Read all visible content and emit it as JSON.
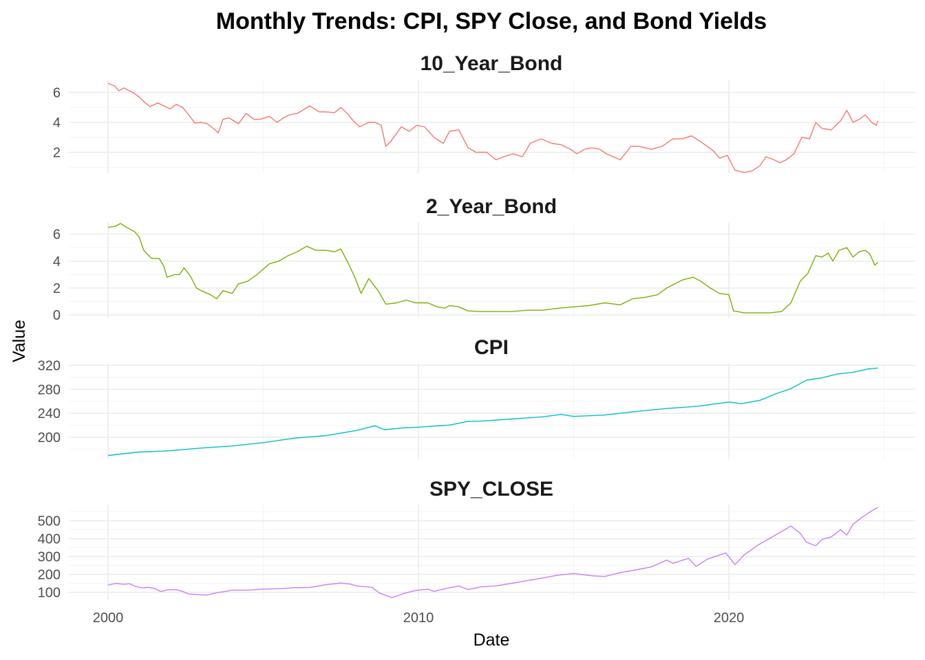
{
  "chart_data": {
    "type": "line",
    "title": "Monthly Trends: CPI, SPY Close, and Bond Yields",
    "xlabel": "Date",
    "ylabel": "Value",
    "x_range": [
      2000.0,
      2024.75
    ],
    "x_ticks": [
      "2000",
      "2010",
      "2020"
    ],
    "legend": "none",
    "grid": true,
    "panels": [
      {
        "name": "10_Year_Bond",
        "color": "#F8766D",
        "ylim": [
          0.6,
          6.8
        ],
        "y_ticks": [
          2,
          4,
          6
        ],
        "series": [
          [
            2000.0,
            6.6
          ],
          [
            2000.2,
            6.45
          ],
          [
            2000.35,
            6.1
          ],
          [
            2000.5,
            6.3
          ],
          [
            2000.65,
            6.15
          ],
          [
            2000.8,
            6.0
          ],
          [
            2001.0,
            5.7
          ],
          [
            2001.2,
            5.3
          ],
          [
            2001.35,
            5.05
          ],
          [
            2001.6,
            5.3
          ],
          [
            2001.85,
            5.05
          ],
          [
            2002.0,
            4.9
          ],
          [
            2002.2,
            5.2
          ],
          [
            2002.4,
            5.0
          ],
          [
            2002.6,
            4.5
          ],
          [
            2002.8,
            3.95
          ],
          [
            2003.0,
            4.0
          ],
          [
            2003.2,
            3.9
          ],
          [
            2003.45,
            3.5
          ],
          [
            2003.55,
            3.3
          ],
          [
            2003.7,
            4.2
          ],
          [
            2003.9,
            4.3
          ],
          [
            2004.2,
            3.9
          ],
          [
            2004.45,
            4.6
          ],
          [
            2004.7,
            4.2
          ],
          [
            2004.9,
            4.2
          ],
          [
            2005.2,
            4.4
          ],
          [
            2005.45,
            4.0
          ],
          [
            2005.65,
            4.3
          ],
          [
            2005.85,
            4.5
          ],
          [
            2006.1,
            4.6
          ],
          [
            2006.5,
            5.1
          ],
          [
            2006.8,
            4.7
          ],
          [
            2007.0,
            4.7
          ],
          [
            2007.3,
            4.65
          ],
          [
            2007.5,
            5.0
          ],
          [
            2007.75,
            4.5
          ],
          [
            2007.9,
            4.1
          ],
          [
            2008.1,
            3.7
          ],
          [
            2008.4,
            4.0
          ],
          [
            2008.6,
            4.0
          ],
          [
            2008.8,
            3.8
          ],
          [
            2008.95,
            2.4
          ],
          [
            2009.1,
            2.7
          ],
          [
            2009.45,
            3.7
          ],
          [
            2009.7,
            3.4
          ],
          [
            2009.95,
            3.8
          ],
          [
            2010.2,
            3.7
          ],
          [
            2010.5,
            3.0
          ],
          [
            2010.8,
            2.6
          ],
          [
            2011.0,
            3.4
          ],
          [
            2011.3,
            3.5
          ],
          [
            2011.6,
            2.3
          ],
          [
            2011.85,
            2.0
          ],
          [
            2012.2,
            2.0
          ],
          [
            2012.5,
            1.5
          ],
          [
            2012.75,
            1.7
          ],
          [
            2013.05,
            1.9
          ],
          [
            2013.35,
            1.7
          ],
          [
            2013.6,
            2.6
          ],
          [
            2013.95,
            2.9
          ],
          [
            2014.3,
            2.6
          ],
          [
            2014.6,
            2.5
          ],
          [
            2014.9,
            2.2
          ],
          [
            2015.1,
            1.9
          ],
          [
            2015.35,
            2.2
          ],
          [
            2015.6,
            2.3
          ],
          [
            2015.85,
            2.2
          ],
          [
            2016.05,
            1.9
          ],
          [
            2016.5,
            1.5
          ],
          [
            2016.85,
            2.4
          ],
          [
            2017.1,
            2.4
          ],
          [
            2017.5,
            2.2
          ],
          [
            2017.85,
            2.4
          ],
          [
            2018.2,
            2.9
          ],
          [
            2018.5,
            2.9
          ],
          [
            2018.8,
            3.1
          ],
          [
            2019.1,
            2.7
          ],
          [
            2019.5,
            2.1
          ],
          [
            2019.7,
            1.6
          ],
          [
            2019.95,
            1.8
          ],
          [
            2020.2,
            0.8
          ],
          [
            2020.5,
            0.65
          ],
          [
            2020.75,
            0.75
          ],
          [
            2021.0,
            1.1
          ],
          [
            2021.2,
            1.7
          ],
          [
            2021.45,
            1.5
          ],
          [
            2021.65,
            1.3
          ],
          [
            2021.85,
            1.5
          ],
          [
            2022.1,
            1.9
          ],
          [
            2022.35,
            3.0
          ],
          [
            2022.6,
            2.9
          ],
          [
            2022.8,
            4.0
          ],
          [
            2023.0,
            3.6
          ],
          [
            2023.3,
            3.5
          ],
          [
            2023.6,
            4.1
          ],
          [
            2023.8,
            4.8
          ],
          [
            2024.0,
            4.0
          ],
          [
            2024.2,
            4.2
          ],
          [
            2024.4,
            4.5
          ],
          [
            2024.6,
            4.0
          ],
          [
            2024.75,
            3.8
          ],
          [
            2024.8,
            4.1
          ]
        ]
      },
      {
        "name": "2_Year_Bond",
        "color": "#7CAE00",
        "ylim": [
          -0.2,
          6.9
        ],
        "y_ticks": [
          0,
          2,
          4,
          6
        ],
        "series": [
          [
            2000.0,
            6.5
          ],
          [
            2000.25,
            6.6
          ],
          [
            2000.4,
            6.8
          ],
          [
            2000.6,
            6.5
          ],
          [
            2000.85,
            6.2
          ],
          [
            2001.0,
            5.8
          ],
          [
            2001.15,
            4.8
          ],
          [
            2001.4,
            4.2
          ],
          [
            2001.65,
            4.2
          ],
          [
            2001.8,
            3.6
          ],
          [
            2001.9,
            2.8
          ],
          [
            2002.15,
            3.0
          ],
          [
            2002.3,
            3.0
          ],
          [
            2002.45,
            3.5
          ],
          [
            2002.65,
            2.9
          ],
          [
            2002.85,
            2.0
          ],
          [
            2003.0,
            1.8
          ],
          [
            2003.3,
            1.5
          ],
          [
            2003.5,
            1.2
          ],
          [
            2003.7,
            1.8
          ],
          [
            2004.0,
            1.6
          ],
          [
            2004.2,
            2.3
          ],
          [
            2004.5,
            2.5
          ],
          [
            2004.8,
            3.0
          ],
          [
            2005.2,
            3.8
          ],
          [
            2005.5,
            4.0
          ],
          [
            2005.8,
            4.4
          ],
          [
            2006.1,
            4.7
          ],
          [
            2006.4,
            5.1
          ],
          [
            2006.7,
            4.8
          ],
          [
            2007.0,
            4.8
          ],
          [
            2007.3,
            4.7
          ],
          [
            2007.5,
            4.9
          ],
          [
            2007.75,
            3.8
          ],
          [
            2007.95,
            2.8
          ],
          [
            2008.15,
            1.6
          ],
          [
            2008.4,
            2.7
          ],
          [
            2008.7,
            1.8
          ],
          [
            2008.95,
            0.8
          ],
          [
            2009.3,
            0.9
          ],
          [
            2009.6,
            1.1
          ],
          [
            2009.9,
            0.9
          ],
          [
            2010.3,
            0.9
          ],
          [
            2010.6,
            0.6
          ],
          [
            2010.85,
            0.5
          ],
          [
            2011.0,
            0.7
          ],
          [
            2011.3,
            0.6
          ],
          [
            2011.6,
            0.3
          ],
          [
            2012.0,
            0.25
          ],
          [
            2012.5,
            0.25
          ],
          [
            2013.0,
            0.25
          ],
          [
            2013.5,
            0.35
          ],
          [
            2014.0,
            0.35
          ],
          [
            2014.5,
            0.5
          ],
          [
            2015.0,
            0.6
          ],
          [
            2015.5,
            0.7
          ],
          [
            2016.0,
            0.9
          ],
          [
            2016.5,
            0.75
          ],
          [
            2016.9,
            1.2
          ],
          [
            2017.3,
            1.3
          ],
          [
            2017.7,
            1.5
          ],
          [
            2018.0,
            2.0
          ],
          [
            2018.5,
            2.6
          ],
          [
            2018.85,
            2.8
          ],
          [
            2019.1,
            2.5
          ],
          [
            2019.4,
            2.0
          ],
          [
            2019.7,
            1.6
          ],
          [
            2020.0,
            1.5
          ],
          [
            2020.15,
            0.3
          ],
          [
            2020.5,
            0.15
          ],
          [
            2020.9,
            0.15
          ],
          [
            2021.3,
            0.15
          ],
          [
            2021.7,
            0.25
          ],
          [
            2022.0,
            0.9
          ],
          [
            2022.3,
            2.5
          ],
          [
            2022.55,
            3.1
          ],
          [
            2022.8,
            4.4
          ],
          [
            2023.0,
            4.3
          ],
          [
            2023.2,
            4.6
          ],
          [
            2023.35,
            4.0
          ],
          [
            2023.55,
            4.8
          ],
          [
            2023.8,
            5.0
          ],
          [
            2024.0,
            4.3
          ],
          [
            2024.2,
            4.7
          ],
          [
            2024.4,
            4.8
          ],
          [
            2024.55,
            4.5
          ],
          [
            2024.7,
            3.7
          ],
          [
            2024.8,
            3.9
          ]
        ]
      },
      {
        "name": "CPI",
        "color": "#00BFC4",
        "ylim": [
          163,
          324
        ],
        "y_ticks": [
          200,
          240,
          280,
          320
        ],
        "series": [
          [
            2000.0,
            169.3
          ],
          [
            2001.0,
            175.1
          ],
          [
            2002.0,
            177.1
          ],
          [
            2003.0,
            181.7
          ],
          [
            2004.0,
            185.2
          ],
          [
            2005.0,
            190.7
          ],
          [
            2006.0,
            198.3
          ],
          [
            2007.0,
            202.4
          ],
          [
            2008.0,
            211.1
          ],
          [
            2008.6,
            219.0
          ],
          [
            2008.9,
            212.4
          ],
          [
            2009.5,
            215.4
          ],
          [
            2010.0,
            216.7
          ],
          [
            2011.0,
            220.2
          ],
          [
            2011.6,
            226.5
          ],
          [
            2012.0,
            226.7
          ],
          [
            2013.0,
            230.3
          ],
          [
            2014.0,
            233.9
          ],
          [
            2014.6,
            238.0
          ],
          [
            2015.0,
            234.7
          ],
          [
            2016.0,
            236.9
          ],
          [
            2017.0,
            242.8
          ],
          [
            2018.0,
            247.9
          ],
          [
            2019.0,
            251.7
          ],
          [
            2020.0,
            258.7
          ],
          [
            2020.4,
            255.9
          ],
          [
            2021.0,
            261.6
          ],
          [
            2021.5,
            272.2
          ],
          [
            2022.0,
            281.1
          ],
          [
            2022.5,
            295.3
          ],
          [
            2023.0,
            299.2
          ],
          [
            2023.5,
            305.7
          ],
          [
            2024.0,
            308.4
          ],
          [
            2024.5,
            314.1
          ],
          [
            2024.8,
            315.6
          ]
        ]
      },
      {
        "name": "SPY_CLOSE",
        "color": "#C77CFF",
        "ylim": [
          56,
          590
        ],
        "y_ticks": [
          100,
          200,
          300,
          400,
          500
        ],
        "series": [
          [
            2000.0,
            140
          ],
          [
            2000.25,
            150
          ],
          [
            2000.5,
            145
          ],
          [
            2000.7,
            148
          ],
          [
            2000.9,
            132
          ],
          [
            2001.1,
            125
          ],
          [
            2001.3,
            128
          ],
          [
            2001.5,
            122
          ],
          [
            2001.7,
            104
          ],
          [
            2001.9,
            114
          ],
          [
            2002.2,
            115
          ],
          [
            2002.4,
            105
          ],
          [
            2002.6,
            90
          ],
          [
            2002.8,
            88
          ],
          [
            2003.0,
            86
          ],
          [
            2003.2,
            85
          ],
          [
            2003.5,
            98
          ],
          [
            2003.8,
            105
          ],
          [
            2004.0,
            112
          ],
          [
            2004.5,
            112
          ],
          [
            2005.0,
            118
          ],
          [
            2005.5,
            120
          ],
          [
            2006.0,
            126
          ],
          [
            2006.5,
            127
          ],
          [
            2007.0,
            142
          ],
          [
            2007.5,
            152
          ],
          [
            2007.8,
            146
          ],
          [
            2008.0,
            136
          ],
          [
            2008.5,
            128
          ],
          [
            2008.75,
            95
          ],
          [
            2009.0,
            80
          ],
          [
            2009.15,
            70
          ],
          [
            2009.5,
            92
          ],
          [
            2009.9,
            110
          ],
          [
            2010.3,
            118
          ],
          [
            2010.5,
            105
          ],
          [
            2010.9,
            122
          ],
          [
            2011.3,
            135
          ],
          [
            2011.6,
            115
          ],
          [
            2012.0,
            130
          ],
          [
            2012.5,
            136
          ],
          [
            2013.0,
            150
          ],
          [
            2013.5,
            165
          ],
          [
            2014.0,
            180
          ],
          [
            2014.5,
            196
          ],
          [
            2015.0,
            205
          ],
          [
            2015.6,
            192
          ],
          [
            2016.0,
            188
          ],
          [
            2016.5,
            210
          ],
          [
            2017.0,
            225
          ],
          [
            2017.5,
            242
          ],
          [
            2018.0,
            280
          ],
          [
            2018.2,
            262
          ],
          [
            2018.7,
            290
          ],
          [
            2018.95,
            245
          ],
          [
            2019.3,
            285
          ],
          [
            2019.9,
            320
          ],
          [
            2020.2,
            255
          ],
          [
            2020.5,
            310
          ],
          [
            2020.9,
            360
          ],
          [
            2021.3,
            400
          ],
          [
            2021.7,
            440
          ],
          [
            2022.0,
            470
          ],
          [
            2022.3,
            430
          ],
          [
            2022.5,
            380
          ],
          [
            2022.8,
            360
          ],
          [
            2023.0,
            395
          ],
          [
            2023.3,
            410
          ],
          [
            2023.6,
            450
          ],
          [
            2023.8,
            420
          ],
          [
            2024.0,
            480
          ],
          [
            2024.3,
            520
          ],
          [
            2024.6,
            555
          ],
          [
            2024.8,
            575
          ]
        ]
      }
    ]
  }
}
